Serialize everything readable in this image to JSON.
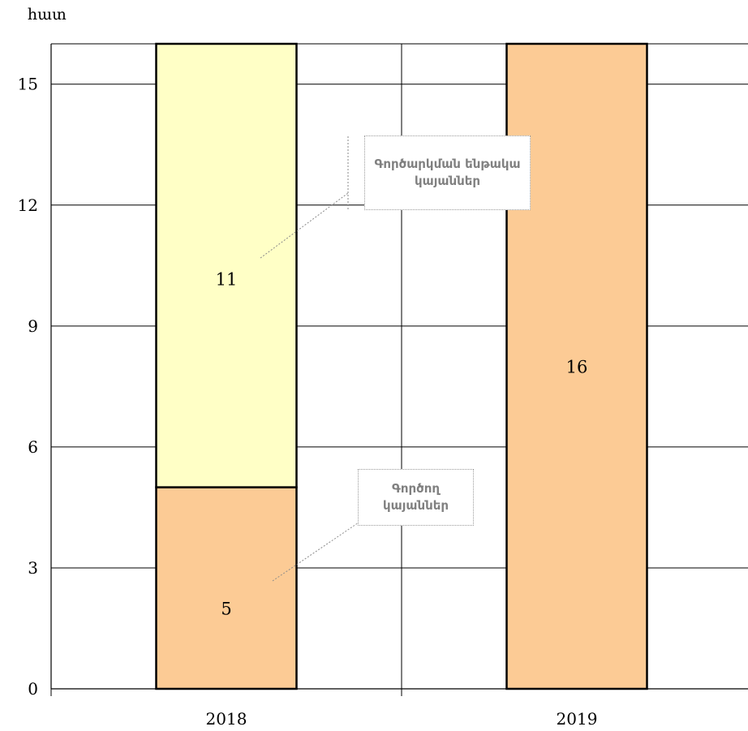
{
  "chart_data": {
    "type": "bar",
    "stacked": true,
    "ylabel": "հատ",
    "categories": [
      "2018",
      "2019"
    ],
    "ylim": [
      0,
      16
    ],
    "yticks": [
      0,
      3,
      6,
      9,
      12,
      15
    ],
    "grid": true,
    "series": [
      {
        "name": "Գործող կայաններ",
        "values": [
          5,
          16
        ],
        "color": "#FCCB95"
      },
      {
        "name": "Գործարկման ենթակա կայաններ",
        "values": [
          11,
          0
        ],
        "color": "#FFFFC6"
      }
    ],
    "data_labels": [
      "5",
      "11",
      "16"
    ],
    "annotations": [
      "Գործարկման ենթակա կայաններ",
      "Գործող կայաններ"
    ]
  }
}
